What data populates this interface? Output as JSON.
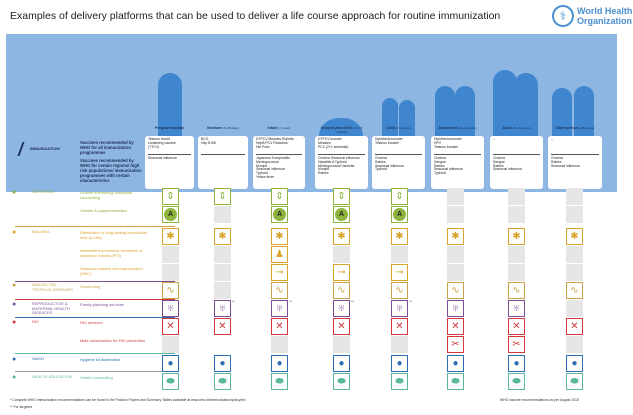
{
  "title": "Examples of delivery platforms that can be used to deliver a life course approach for routine immunization",
  "logo": {
    "line1": "World Health",
    "line2": "Organization"
  },
  "immunization": {
    "label": "IMMUNIZATION*",
    "desc_all": "Vaccines recommended by WHO for all immunization programmes",
    "desc_some": "Vaccines recommended by WHO for certain regions/ high risk populations/ immunization programmes with certain characteristics"
  },
  "columns": [
    {
      "name": "Pregnant woman",
      "age": "",
      "primary": "Tetanus toxoid\ncontaining vaccine\n(TTCV)",
      "secondary": "Seasonal influenza"
    },
    {
      "name": "Newborn",
      "age": "(0-28 days)",
      "primary": "BCG\nHep B BD",
      "secondary": ""
    },
    {
      "name": "Infant",
      "age": "(<1 year)",
      "primary": "DTPCV  Measles  Rubella\nHepB   PCV   Rotavirus\nHib    Polio",
      "secondary": "Japanese Encephalitis\nMeningococcal\nMumps\nSeasonal influenza\nTyphoid\nYellow fever"
    },
    {
      "name": "Second year of life",
      "age": "(12-23 months)",
      "primary": "DTPCV booster\nMeasles\nPCV (2+1 schedule)",
      "secondary": "Cholera   Seasonal influenza\nHepatitis A   Typhoid\nMeningococcal   Varicella\nMumps\nRabies"
    },
    {
      "name": "Child",
      "age": "(2-9 years)",
      "primary": "Diphtheria booster\nTetanus booster",
      "secondary": "Cholera\nRabies\nSeasonal influenza\nTyphoid"
    },
    {
      "name": "Adolescent",
      "age": "(10-19 years)",
      "primary": "Diphtheria booster\nHPV\nTetanus booster",
      "secondary": "Cholera\nDengue\nRabies\nSeasonal influenza\nTyphoid"
    },
    {
      "name": "Adult",
      "age": "(20-49 years)",
      "primary": "--",
      "secondary": "Cholera\nDengue\nRabies\nSeasonal influenza"
    },
    {
      "name": "Older person",
      "age": "(≥50 years)",
      "primary": "--",
      "secondary": "Cholera\nRabies\nSeasonal influenza"
    }
  ],
  "sections": [
    {
      "label": "NUTRITION",
      "icon": "apple-icon",
      "color": "#8db33a"
    },
    {
      "label": "MALARIA",
      "icon": "mosquito-icon",
      "color": "#d9a42b"
    },
    {
      "label": "NEGLECTED TROPICAL DISEASES",
      "icon": "worm-icon",
      "color": "#c9a24a"
    },
    {
      "label": "REPRODUCTIVE & MATERNAL HEALTH SERVICES",
      "icon": "uterus-icon",
      "color": "#7b4f94"
    },
    {
      "label": "HIV",
      "icon": "ribbon-icon",
      "color": "#d2393b"
    },
    {
      "label": "WASH",
      "icon": "hands-icon",
      "color": "#2d6db5"
    },
    {
      "label": "HEALTH EDUCATION",
      "icon": "speech-bubble-icon",
      "color": "#5ab89a"
    }
  ],
  "rows": [
    {
      "service": "Growth monitoring/ nutritional counselling",
      "section": 0,
      "icon": "growth-icon",
      "glyph": "⇕",
      "cells": "YYYYYGGG"
    },
    {
      "service": "Vitamin A supplementation",
      "section": 0,
      "icon": "vitamin-a-icon",
      "glyph": "A",
      "cells": "YGYYYGGG"
    },
    {
      "service": "Distribution of long-lasting insecticidal nets (LLINs)",
      "section": 1,
      "icon": "bednet-icon",
      "glyph": "✱",
      "cells": "YYYYYYYY"
    },
    {
      "service": "Intermittent preventive treatment of malaria in infants (IPTi)",
      "section": 1,
      "icon": "ipti-icon",
      "glyph": "♟",
      "cells": "GGYGGGGG"
    },
    {
      "service": "Seasonal malaria chemoprevention (SMC)",
      "section": 1,
      "icon": "smc-icon",
      "glyph": "⊸",
      "cells": "GGYYYGGG"
    },
    {
      "service": "Deworming",
      "section": 2,
      "icon": "worm-icon",
      "glyph": "∿",
      "cells": "YGYYYYYY"
    },
    {
      "service": "Family planning services",
      "section": 3,
      "icon": "uterus-icon",
      "glyph": "♅",
      "cells": "YYYYYYYG",
      "marks": [
        "",
        "**",
        "**",
        "**",
        "**",
        "",
        "",
        ""
      ]
    },
    {
      "service": "HIV services",
      "section": 4,
      "icon": "ribbon-icon",
      "glyph": "✕",
      "cells": "YYYYYYYY"
    },
    {
      "service": "Male circumcision for HIV prevention",
      "section": 4,
      "icon": "circumcision-icon",
      "glyph": "✂",
      "cells": "G-GGGYYG"
    },
    {
      "service": "Hygiene kit distribution",
      "section": 5,
      "icon": "hands-icon",
      "glyph": "●",
      "cells": "YYYYYYYY"
    },
    {
      "service": "Health counselling",
      "section": 6,
      "icon": "speech-bubble-icon",
      "glyph": "⬬",
      "cells": "YYYYYYYY"
    }
  ],
  "footnotes": {
    "one": "* Complete WHO immunization recommendations can be found in the Position Papers and Summary Tables available at www.who.int/immunization/policy/en/",
    "two": "** For targeted",
    "right": "WHO vaccine recommendations as per August 2018"
  },
  "colors": {
    "panel": "#8eb6e3",
    "figure": "#3f86cf",
    "gray": "#e6e6e6"
  }
}
